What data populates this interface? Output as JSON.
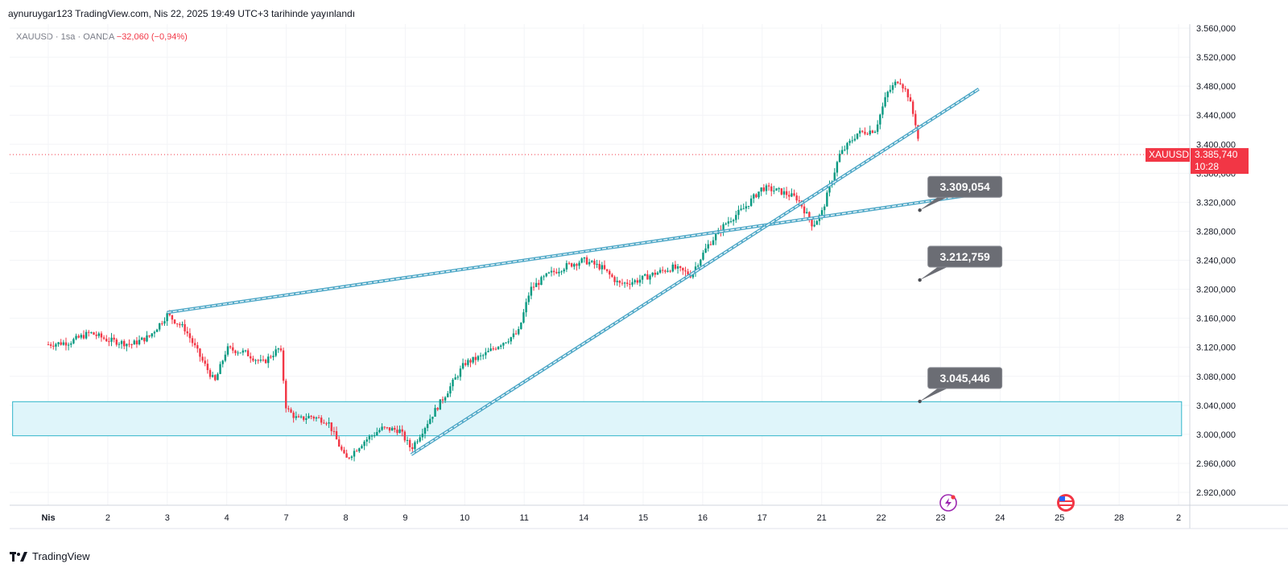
{
  "header": {
    "title": "aynuruygar123 TradingView.com, Nis 22, 2025 19:49 UTC+3 tarihinde yayınlandı"
  },
  "symbol_bar": {
    "symbol": "XAUUSD",
    "sep1": "·",
    "interval": "1sa",
    "sep2": "·",
    "source": "OANDA",
    "change": "−32,060 (−0,94%)"
  },
  "footer": {
    "brand": "TradingView"
  },
  "colors": {
    "up": "#089981",
    "down": "#f23645",
    "trendline": "#4fa8c7",
    "zone_fill": "#dff5fa",
    "zone_border": "#2fb5c9",
    "callout": "#6b6d74",
    "axis": "#e0e3eb"
  },
  "chart_data": {
    "type": "candlestick",
    "symbol": "XAUUSD",
    "interval": "1sa",
    "ylim": [
      2900,
      3575
    ],
    "y_ticks": [
      "3.560,000",
      "3.520,000",
      "3.480,000",
      "3.440,000",
      "3.400,000",
      "3.360,000",
      "3.320,000",
      "3.280,000",
      "3.240,000",
      "3.200,000",
      "3.160,000",
      "3.120,000",
      "3.080,000",
      "3.040,000",
      "3.000,000",
      "2.960,000",
      "2.920,000"
    ],
    "y_tick_values": [
      3560,
      3520,
      3480,
      3440,
      3400,
      3360,
      3320,
      3280,
      3240,
      3200,
      3160,
      3120,
      3080,
      3040,
      3000,
      2960,
      2920
    ],
    "x_ticks": [
      "Nis",
      "2",
      "3",
      "4",
      "7",
      "8",
      "9",
      "10",
      "11",
      "14",
      "15",
      "16",
      "17",
      "21",
      "22",
      "23",
      "24",
      "25",
      "28",
      "2"
    ],
    "x_tick_index": [
      0,
      1,
      2,
      3,
      4,
      5,
      6,
      7,
      8,
      9,
      10,
      11,
      12,
      13,
      14,
      15,
      16,
      17,
      18,
      19
    ],
    "current_price": {
      "symbol": "XAUUSD",
      "price": "3.385,740",
      "countdown": "10:28",
      "value": 3385.74
    },
    "price_path": [
      {
        "t": 0.0,
        "p": 3124
      },
      {
        "t": 0.35,
        "p": 3127
      },
      {
        "t": 0.7,
        "p": 3140
      },
      {
        "t": 1.0,
        "p": 3130
      },
      {
        "t": 1.4,
        "p": 3124
      },
      {
        "t": 1.7,
        "p": 3135
      },
      {
        "t": 2.0,
        "p": 3165
      },
      {
        "t": 2.3,
        "p": 3145
      },
      {
        "t": 2.6,
        "p": 3100
      },
      {
        "t": 2.8,
        "p": 3072
      },
      {
        "t": 3.0,
        "p": 3118
      },
      {
        "t": 3.3,
        "p": 3113
      },
      {
        "t": 3.6,
        "p": 3098
      },
      {
        "t": 3.9,
        "p": 3120
      },
      {
        "t": 4.0,
        "p": 3035
      },
      {
        "t": 4.2,
        "p": 3020
      },
      {
        "t": 4.4,
        "p": 3025
      },
      {
        "t": 4.7,
        "p": 3018
      },
      {
        "t": 5.0,
        "p": 2965
      },
      {
        "t": 5.3,
        "p": 2990
      },
      {
        "t": 5.6,
        "p": 3008
      },
      {
        "t": 5.9,
        "p": 3006
      },
      {
        "t": 6.1,
        "p": 2980
      },
      {
        "t": 6.4,
        "p": 3020
      },
      {
        "t": 6.7,
        "p": 3058
      },
      {
        "t": 7.0,
        "p": 3098
      },
      {
        "t": 7.3,
        "p": 3108
      },
      {
        "t": 7.6,
        "p": 3125
      },
      {
        "t": 7.9,
        "p": 3140
      },
      {
        "t": 8.1,
        "p": 3200
      },
      {
        "t": 8.4,
        "p": 3220
      },
      {
        "t": 8.7,
        "p": 3232
      },
      {
        "t": 9.0,
        "p": 3240
      },
      {
        "t": 9.3,
        "p": 3230
      },
      {
        "t": 9.6,
        "p": 3207
      },
      {
        "t": 9.9,
        "p": 3212
      },
      {
        "t": 10.2,
        "p": 3222
      },
      {
        "t": 10.5,
        "p": 3230
      },
      {
        "t": 10.8,
        "p": 3220
      },
      {
        "t": 11.1,
        "p": 3262
      },
      {
        "t": 11.4,
        "p": 3292
      },
      {
        "t": 11.7,
        "p": 3312
      },
      {
        "t": 12.0,
        "p": 3340
      },
      {
        "t": 12.3,
        "p": 3335
      },
      {
        "t": 12.6,
        "p": 3325
      },
      {
        "t": 12.85,
        "p": 3288
      },
      {
        "t": 13.0,
        "p": 3305
      },
      {
        "t": 13.3,
        "p": 3385
      },
      {
        "t": 13.6,
        "p": 3415
      },
      {
        "t": 13.9,
        "p": 3420
      },
      {
        "t": 14.1,
        "p": 3470
      },
      {
        "t": 14.3,
        "p": 3490
      },
      {
        "t": 14.45,
        "p": 3468
      },
      {
        "t": 14.6,
        "p": 3422
      },
      {
        "t": 14.65,
        "p": 3386
      }
    ],
    "trendlines": [
      {
        "name": "resistance-line",
        "x1": 2.0,
        "y1": 3168,
        "x2": 15.92,
        "y2": 3335
      },
      {
        "name": "support-line",
        "x1": 6.1,
        "y1": 2972,
        "x2": 15.64,
        "y2": 3476
      }
    ],
    "zone": {
      "x_start": -0.6,
      "x_end": 19.05,
      "y_low": 2998,
      "y_high": 3045
    },
    "callouts": [
      {
        "label": "3.309,054",
        "value": 3309.054,
        "x": 14.65
      },
      {
        "label": "3.212,759",
        "value": 3212.759,
        "x": 14.65
      },
      {
        "label": "3.045,446",
        "value": 3045.446,
        "x": 14.65
      }
    ]
  }
}
